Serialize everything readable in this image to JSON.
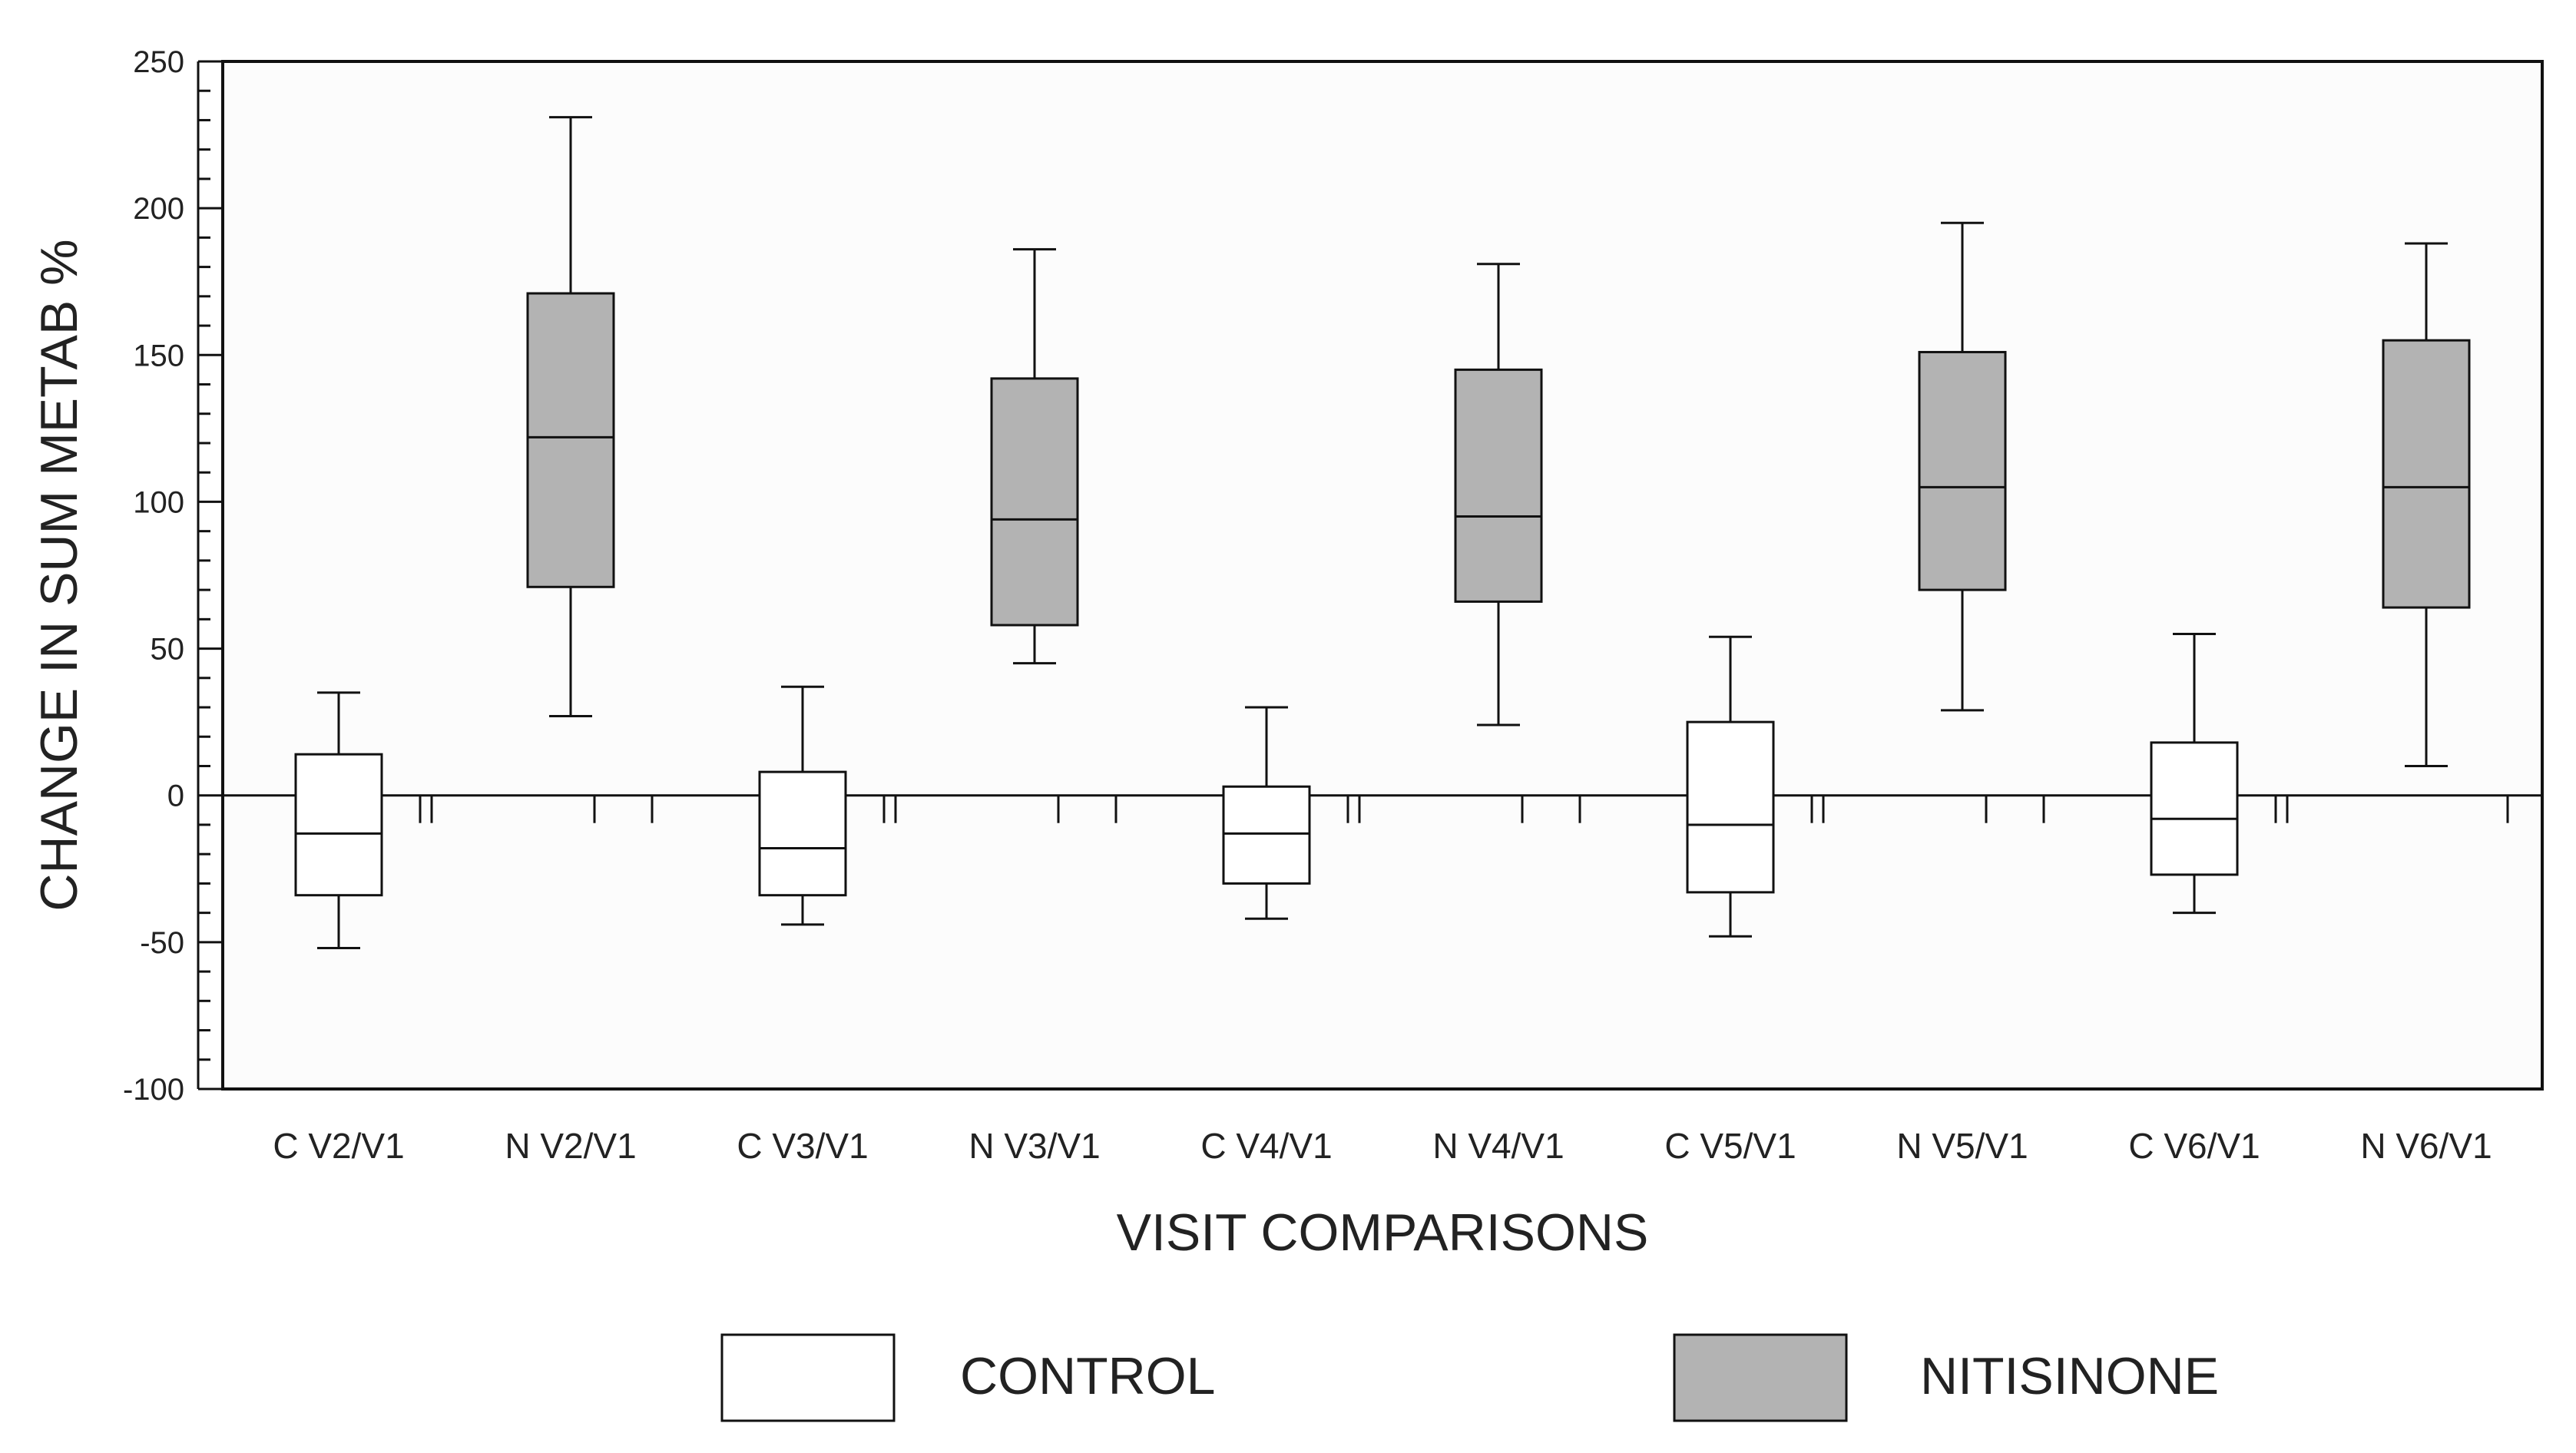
{
  "chart_data": {
    "type": "boxplot",
    "ylabel": "CHANGE IN SUM METAB %",
    "xlabel": "VISIT COMPARISONS",
    "ylim": [
      -100,
      250
    ],
    "yticks": [
      -100,
      -50,
      0,
      50,
      100,
      150,
      200,
      250
    ],
    "ytick_labels": [
      "-100",
      "-50",
      "0",
      "50",
      "100",
      "150",
      "200",
      "250"
    ],
    "y_minor_step": 10,
    "zero_line": true,
    "grid": false,
    "legend_position": "bottom",
    "legend": [
      {
        "label": "CONTROL",
        "color": "#ffffff"
      },
      {
        "label": "NITISINONE",
        "color": "#b3b3b3"
      }
    ],
    "groups": [
      {
        "category": "C V2/V1",
        "series": "CONTROL",
        "min": -52,
        "q1": -34,
        "median": -13,
        "q3": 14,
        "max": 35
      },
      {
        "category": "N V2/V1",
        "series": "NITISINONE",
        "min": 27,
        "q1": 71,
        "median": 122,
        "q3": 171,
        "max": 231
      },
      {
        "category": "C V3/V1",
        "series": "CONTROL",
        "min": -44,
        "q1": -34,
        "median": -18,
        "q3": 8,
        "max": 37
      },
      {
        "category": "N V3/V1",
        "series": "NITISINONE",
        "min": 45,
        "q1": 58,
        "median": 94,
        "q3": 142,
        "max": 186
      },
      {
        "category": "C V4/V1",
        "series": "CONTROL",
        "min": -42,
        "q1": -30,
        "median": -13,
        "q3": 3,
        "max": 30
      },
      {
        "category": "N V4/V1",
        "series": "NITISINONE",
        "min": 24,
        "q1": 66,
        "median": 95,
        "q3": 145,
        "max": 181
      },
      {
        "category": "C V5/V1",
        "series": "CONTROL",
        "min": -48,
        "q1": -33,
        "median": -10,
        "q3": 25,
        "max": 54
      },
      {
        "category": "N V5/V1",
        "series": "NITISINONE",
        "min": 29,
        "q1": 70,
        "median": 105,
        "q3": 151,
        "max": 195
      },
      {
        "category": "C V6/V1",
        "series": "CONTROL",
        "min": -40,
        "q1": -27,
        "median": -8,
        "q3": 18,
        "max": 55
      },
      {
        "category": "N V6/V1",
        "series": "NITISINONE",
        "min": 10,
        "q1": 64,
        "median": 105,
        "q3": 155,
        "max": 188
      }
    ]
  }
}
